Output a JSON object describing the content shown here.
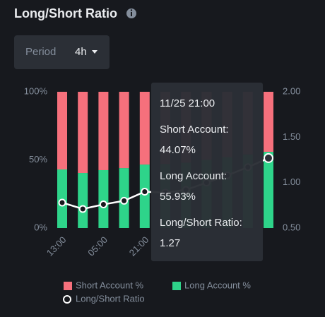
{
  "header": {
    "title": "Long/Short Ratio",
    "period_label": "Period",
    "period_value": "4h"
  },
  "chart_data": {
    "type": "bar",
    "categories": [
      "13:00",
      null,
      "05:00",
      null,
      "21:00",
      null,
      null,
      null,
      null,
      null,
      null
    ],
    "series": [
      {
        "name": "Short Account %",
        "color": "#f6707c",
        "values": [
          57,
          59.6,
          57.5,
          56,
          53.4,
          53,
          52,
          50,
          48,
          46,
          44.07
        ]
      },
      {
        "name": "Long Account %",
        "color": "#2ed48a",
        "values": [
          43,
          40.4,
          42.5,
          44,
          46.6,
          47,
          48,
          50,
          52,
          54,
          55.93
        ]
      },
      {
        "name": "Long/Short Ratio",
        "type": "line",
        "axis": "y2",
        "color": "#ffffff",
        "values": [
          0.78,
          0.71,
          0.76,
          0.8,
          0.9,
          0.89,
          0.92,
          1.0,
          1.08,
          1.17,
          1.27
        ]
      }
    ],
    "stacked": true,
    "ylim": [
      0,
      100
    ],
    "yticks": [
      {
        "value": 0,
        "label": "0%"
      },
      {
        "value": 50,
        "label": "50%"
      },
      {
        "value": 100,
        "label": "100%"
      }
    ],
    "y2lim": [
      0.5,
      2
    ],
    "y2ticks": [
      {
        "value": 0.5,
        "label": "0.50"
      },
      {
        "value": 1,
        "label": "1.00"
      },
      {
        "value": 1.5,
        "label": "1.50"
      },
      {
        "value": 2,
        "label": "2.00"
      }
    ],
    "grid": false,
    "tooltip": {
      "title": "11/25 21:00",
      "items": [
        {
          "label": "Short Account:",
          "value": "44.07%"
        },
        {
          "label": "Long Account:",
          "value": "55.93%"
        },
        {
          "label": "Long/Short Ratio:",
          "value": "1.27"
        }
      ]
    }
  }
}
